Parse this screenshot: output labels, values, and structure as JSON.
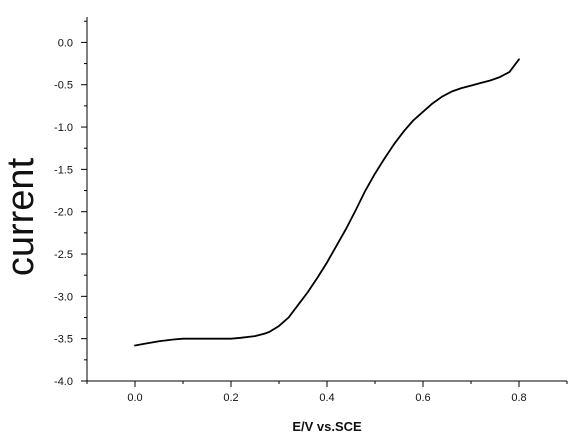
{
  "chart_data": {
    "type": "line",
    "title": "",
    "xlabel": "E/V vs.SCE",
    "ylabel": "current",
    "xlim": [
      -0.1,
      0.9
    ],
    "ylim": [
      -4.0,
      0.3
    ],
    "grid": false,
    "x_ticks": [
      0.0,
      0.2,
      0.4,
      0.6,
      0.8
    ],
    "x_tick_labels": [
      "0.0",
      "0.2",
      "0.4",
      "0.6",
      "0.8"
    ],
    "x_minor_ticks": [
      -0.1,
      0.1,
      0.3,
      0.5,
      0.7,
      0.9
    ],
    "y_ticks": [
      0.0,
      -0.5,
      -1.0,
      -1.5,
      -2.0,
      -2.5,
      -3.0,
      -3.5,
      -4.0
    ],
    "y_tick_labels": [
      "0.0",
      "-0.5",
      "-1.0",
      "-1.5",
      "-2.0",
      "-2.5",
      "-3.0",
      "-3.5",
      "-4.0"
    ],
    "y_minor_ticks": [
      0.25,
      -0.25,
      -0.75,
      -1.25,
      -1.75,
      -2.25,
      -2.75,
      -3.25,
      -3.75
    ],
    "series": [
      {
        "color": "#000000",
        "x": [
          0.0,
          0.02,
          0.05,
          0.08,
          0.1,
          0.15,
          0.2,
          0.22,
          0.25,
          0.27,
          0.28,
          0.3,
          0.32,
          0.34,
          0.36,
          0.38,
          0.4,
          0.42,
          0.44,
          0.46,
          0.48,
          0.5,
          0.52,
          0.54,
          0.56,
          0.58,
          0.6,
          0.62,
          0.64,
          0.66,
          0.68,
          0.7,
          0.72,
          0.74,
          0.76,
          0.78,
          0.8
        ],
        "y": [
          -3.58,
          -3.56,
          -3.53,
          -3.51,
          -3.5,
          -3.5,
          -3.5,
          -3.49,
          -3.47,
          -3.44,
          -3.42,
          -3.35,
          -3.25,
          -3.1,
          -2.95,
          -2.78,
          -2.6,
          -2.4,
          -2.2,
          -1.98,
          -1.75,
          -1.55,
          -1.37,
          -1.2,
          -1.05,
          -0.92,
          -0.82,
          -0.72,
          -0.64,
          -0.58,
          -0.54,
          -0.51,
          -0.48,
          -0.45,
          -0.41,
          -0.35,
          -0.2
        ]
      }
    ]
  }
}
